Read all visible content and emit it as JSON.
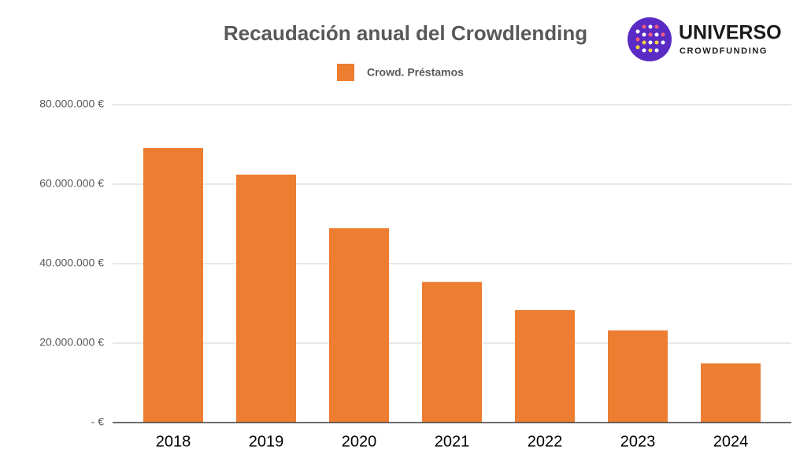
{
  "chart_data": {
    "type": "bar",
    "title": "Recaudación anual del Crowdlending",
    "logo": {
      "name": "UNIVERSO",
      "tagline": "CROWDFUNDING"
    },
    "categories": [
      "2018",
      "2019",
      "2020",
      "2021",
      "2022",
      "2023",
      "2024"
    ],
    "series": [
      {
        "name": "Crowd. Préstamos",
        "color": "#ed7d31",
        "values": [
          69100000,
          62400000,
          48900000,
          35400000,
          28300000,
          23200000,
          14900000
        ]
      }
    ],
    "ylim": [
      0,
      80000000
    ],
    "yticks": [
      {
        "value": 0,
        "label": "-  €"
      },
      {
        "value": 20000000,
        "label": "20.000.000 €"
      },
      {
        "value": 40000000,
        "label": "40.000.000 €"
      },
      {
        "value": 60000000,
        "label": "60.000.000 €"
      },
      {
        "value": 80000000,
        "label": "80.000.000 €"
      }
    ],
    "grid": true,
    "legend": "top"
  }
}
